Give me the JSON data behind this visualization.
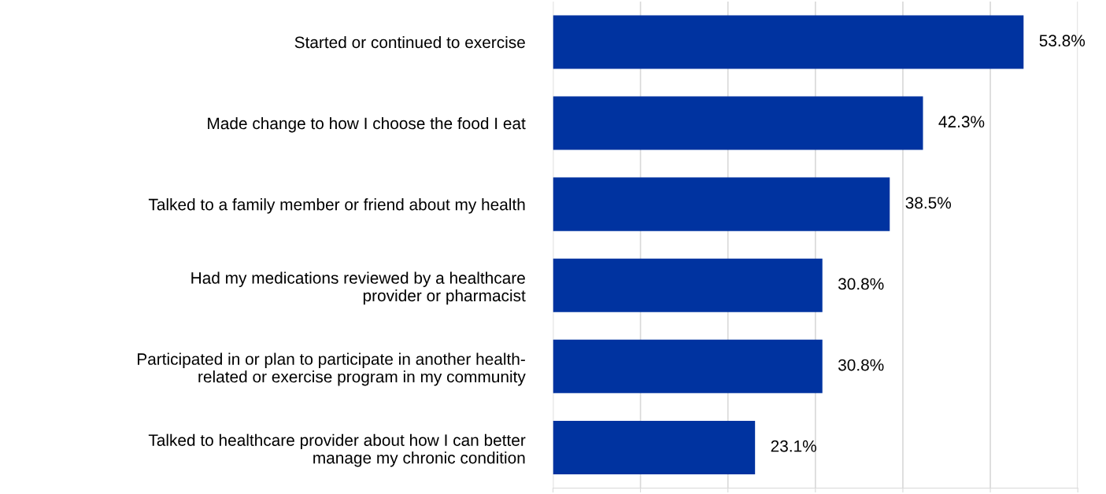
{
  "chart_data": {
    "type": "bar",
    "orientation": "horizontal",
    "categories": [
      "Started or continued to exercise",
      "Made change to how I choose the food I eat",
      "Talked to a family member or friend about my health",
      "Had my medications reviewed by a healthcare\nprovider or pharmacist",
      "Participated in or plan to participate in another health-\nrelated or exercise program in my community",
      "Talked to healthcare provider about how I can better\nmanage my chronic condition"
    ],
    "values": [
      53.8,
      42.3,
      38.5,
      30.8,
      30.8,
      23.1
    ],
    "value_labels": [
      "53.8%",
      "42.3%",
      "38.5%",
      "30.8%",
      "30.8%",
      "23.1%"
    ],
    "color": "#0033a0",
    "xlim": [
      0,
      60
    ],
    "xticks": [
      {
        "value": 0,
        "label": null
      },
      {
        "value": 10,
        "label": null
      },
      {
        "value": 20,
        "label": null
      },
      {
        "value": 30,
        "label": null
      },
      {
        "value": 40,
        "label": null
      },
      {
        "value": 50,
        "label": null
      },
      {
        "value": 60,
        "label": null
      }
    ],
    "tick_labels": "y",
    "grid": "x"
  }
}
